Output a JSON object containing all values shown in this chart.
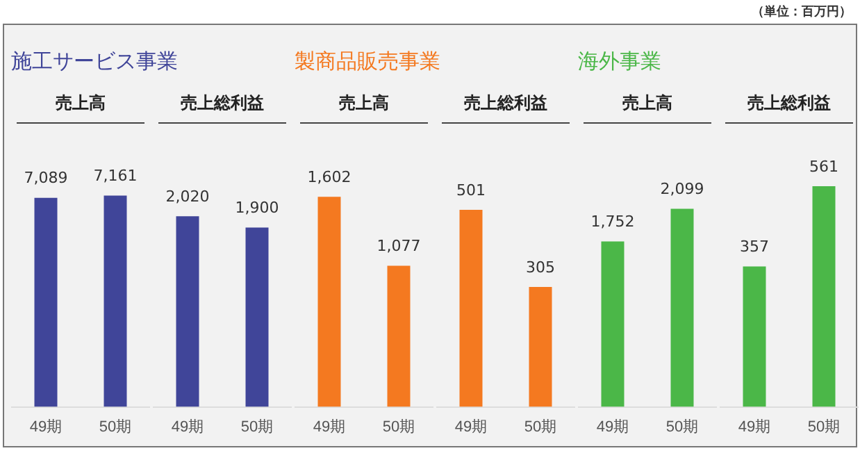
{
  "chart_data": [
    {
      "type": "bar",
      "title": "施工サービス事業",
      "subtitle": "売上高",
      "categories": [
        "49期",
        "50期"
      ],
      "values": [
        7089,
        7161
      ],
      "value_labels": [
        "7,089",
        "7,161"
      ],
      "color": "#404599",
      "tick_labels": "x",
      "grid": false,
      "legend": false
    },
    {
      "type": "bar",
      "subtitle": "売上総利益",
      "categories": [
        "49期",
        "50期"
      ],
      "values": [
        2020,
        1900
      ],
      "value_labels": [
        "2,020",
        "1,900"
      ],
      "color": "#404599",
      "tick_labels": "x",
      "grid": false,
      "legend": false
    },
    {
      "type": "bar",
      "title": "製商品販売事業",
      "subtitle": "売上高",
      "categories": [
        "49期",
        "50期"
      ],
      "values": [
        1602,
        1077
      ],
      "value_labels": [
        "1,602",
        "1,077"
      ],
      "color": "#f47920",
      "tick_labels": "x",
      "grid": false,
      "legend": false
    },
    {
      "type": "bar",
      "subtitle": "売上総利益",
      "categories": [
        "49期",
        "50期"
      ],
      "values": [
        501,
        305
      ],
      "value_labels": [
        "501",
        "305"
      ],
      "color": "#f47920",
      "tick_labels": "x",
      "grid": false,
      "legend": false
    },
    {
      "type": "bar",
      "title": "海外事業",
      "subtitle": "売上高",
      "categories": [
        "49期",
        "50期"
      ],
      "values": [
        1752,
        2099
      ],
      "value_labels": [
        "1,752",
        "2,099"
      ],
      "color": "#4bb748",
      "tick_labels": "x",
      "grid": false,
      "legend": false
    },
    {
      "type": "bar",
      "subtitle": "売上総利益",
      "categories": [
        "49期",
        "50期"
      ],
      "values": [
        357,
        561
      ],
      "value_labels": [
        "357",
        "561"
      ],
      "color": "#4bb748",
      "tick_labels": "x",
      "grid": false,
      "legend": false,
      "annotations": [
        "（単位：百万円）"
      ]
    }
  ]
}
